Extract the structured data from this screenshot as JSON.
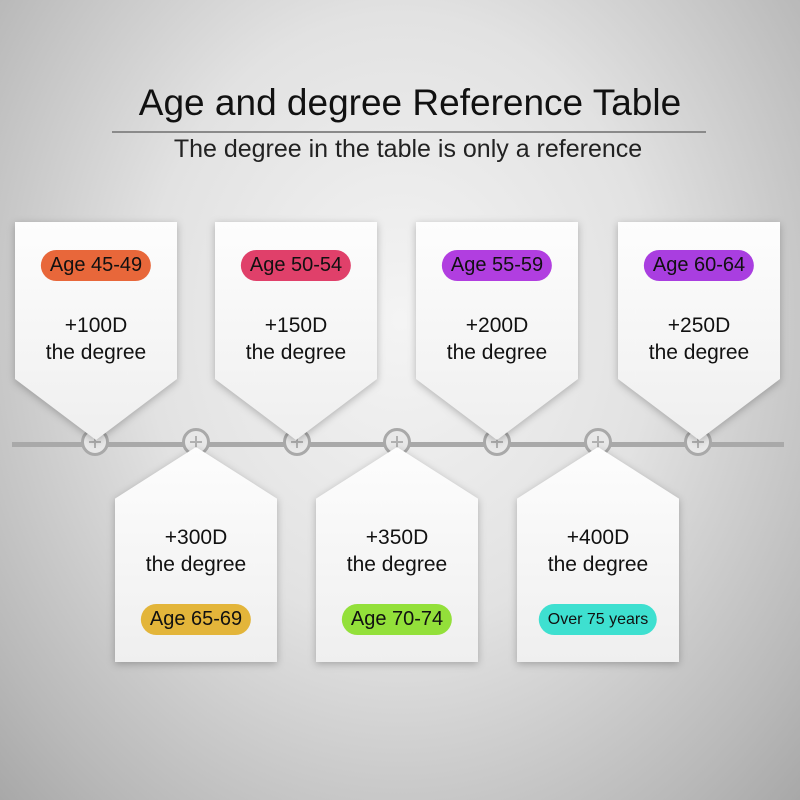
{
  "title": "Age and degree Reference Table",
  "subtitle": "The degree in the table is only a reference",
  "cards": [
    {
      "age": "Age 45-49",
      "value": "+100D",
      "label": "the degree",
      "color": "#e8673a"
    },
    {
      "age": "Age 50-54",
      "value": "+150D",
      "label": "the degree",
      "color": "#e0406a"
    },
    {
      "age": "Age 55-59",
      "value": "+200D",
      "label": "the degree",
      "color": "#b13ee0"
    },
    {
      "age": "Age 60-64",
      "value": "+250D",
      "label": "the degree",
      "color": "#a93ee0"
    },
    {
      "age": "Age 65-69",
      "value": "+300D",
      "label": "the degree",
      "color": "#e3b53a"
    },
    {
      "age": "Age 70-74",
      "value": "+350D",
      "label": "the degree",
      "color": "#93e03a"
    },
    {
      "age": "Over 75 years",
      "value": "+400D",
      "label": "the degree",
      "color": "#3ee0d0"
    }
  ]
}
